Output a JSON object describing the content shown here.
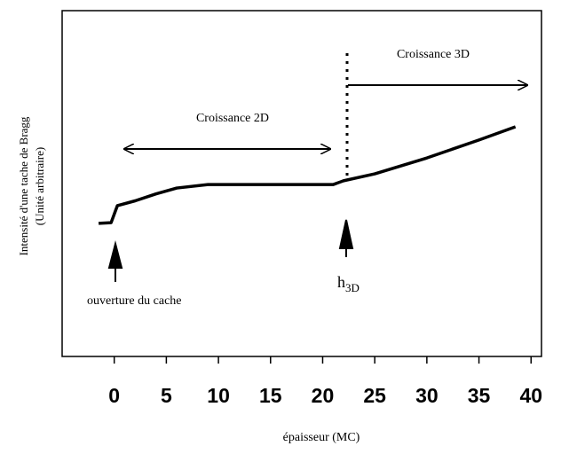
{
  "chart_data": {
    "type": "line",
    "y_label_lines": [
      "Intensité d'une tache de Bragg",
      "(Unité arbitraire)"
    ],
    "x_label": "épaisseur (MC)",
    "x": [
      -1.5,
      -0.3,
      0.3,
      2,
      4,
      6,
      9,
      15,
      21,
      22,
      25,
      30,
      35,
      38.5
    ],
    "values": [
      38.5,
      38.7,
      43.6,
      45,
      47,
      48.7,
      49.7,
      49.7,
      49.7,
      50.8,
      52.8,
      57.4,
      62.6,
      66.4
    ],
    "color": "#000000",
    "xlim": [
      -5,
      41
    ],
    "xticks": [
      0,
      5,
      10,
      15,
      20,
      25,
      30,
      35,
      40
    ],
    "ylim": [
      0,
      100
    ],
    "annotations": {
      "growth_2d": "Croissance 2D",
      "growth_3d": "Croissance 3D",
      "shutter": "ouverture du cache",
      "h3d": "h",
      "h3d_sub": "3D"
    }
  }
}
